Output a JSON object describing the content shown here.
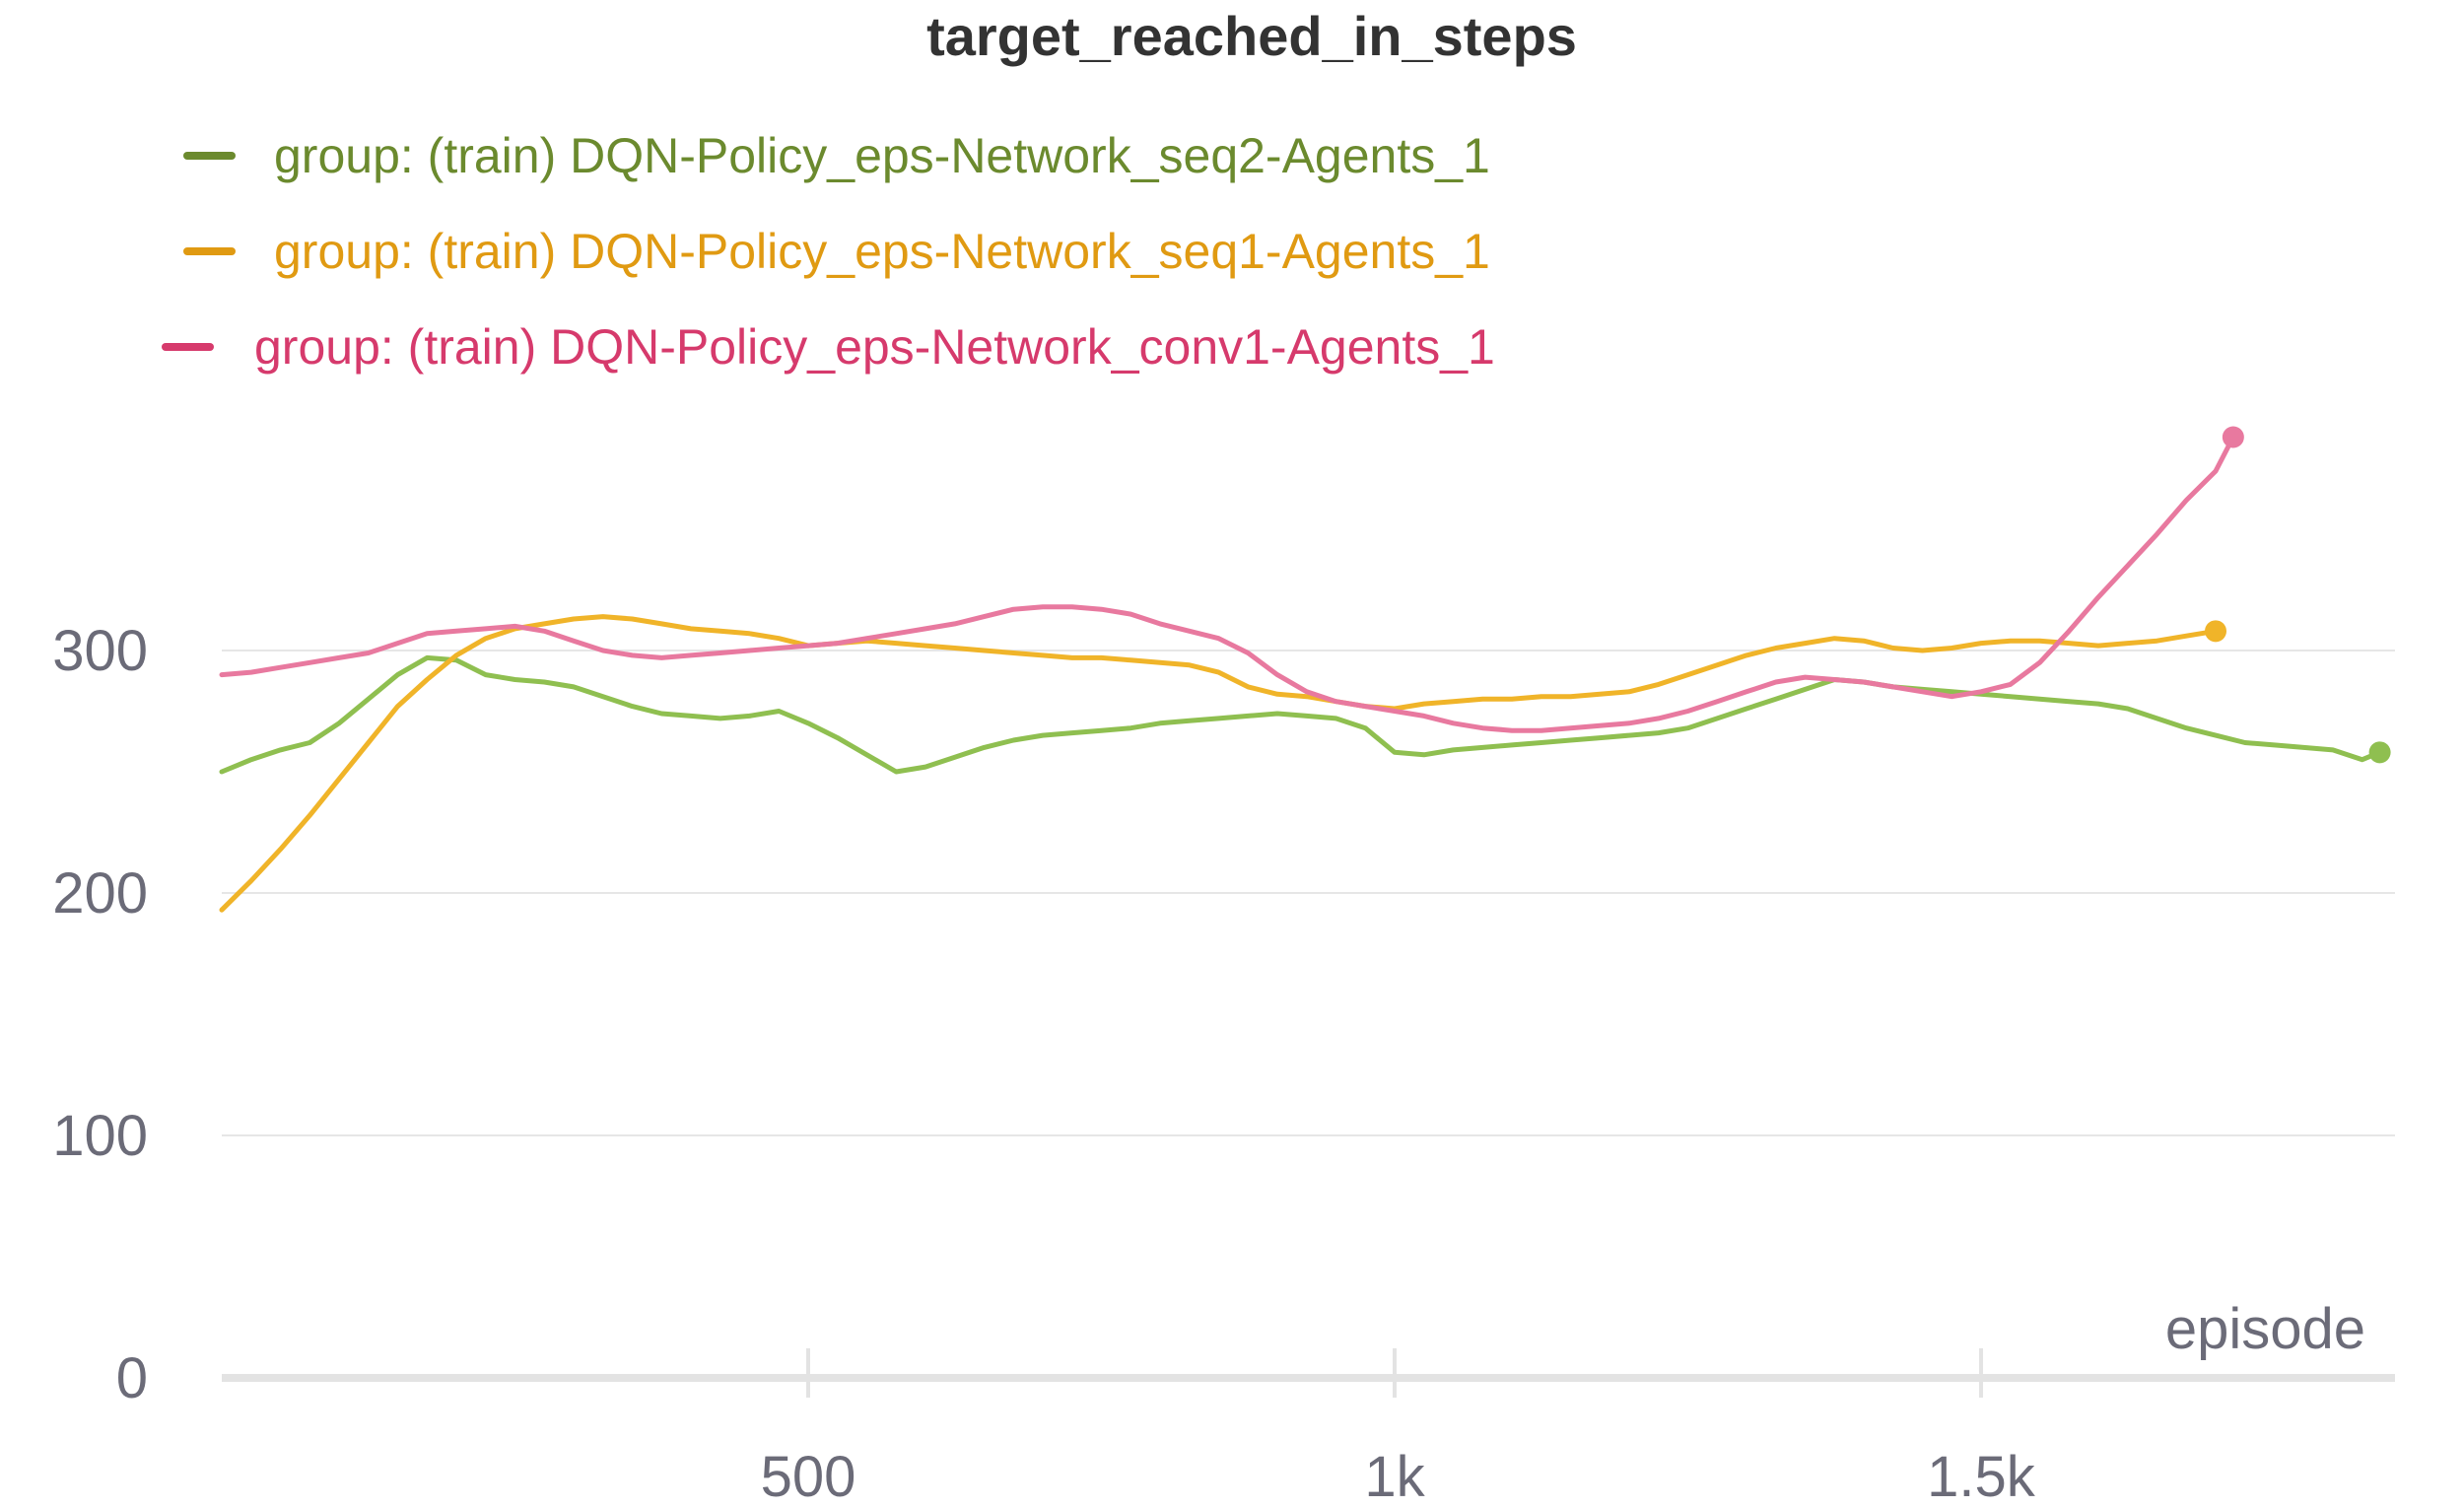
{
  "chart_data": {
    "type": "line",
    "title": "target_reached_in_steps",
    "xlabel": "episode",
    "ylabel": "",
    "xlim": [
      0,
      1840
    ],
    "ylim": [
      0,
      400
    ],
    "x_ticks": [
      {
        "value": 500,
        "label": "500"
      },
      {
        "value": 1000,
        "label": "1k"
      },
      {
        "value": 1500,
        "label": "1.5k"
      }
    ],
    "y_ticks": [
      {
        "value": 0,
        "label": "0"
      },
      {
        "value": 100,
        "label": "100"
      },
      {
        "value": 200,
        "label": "200"
      },
      {
        "value": 300,
        "label": "300"
      }
    ],
    "grid": true,
    "legend_position": "top-left",
    "series": [
      {
        "name": "group: (train) DQN-Policy_eps-Network_seq2-Agents_1",
        "color": "#8fbf50",
        "legend_color": "#6b8a2e",
        "x": [
          0,
          25,
          50,
          75,
          100,
          125,
          150,
          175,
          200,
          225,
          250,
          275,
          300,
          325,
          350,
          375,
          400,
          425,
          450,
          475,
          500,
          525,
          550,
          575,
          600,
          625,
          650,
          675,
          700,
          725,
          750,
          775,
          800,
          825,
          850,
          875,
          900,
          925,
          950,
          975,
          1000,
          1025,
          1050,
          1075,
          1100,
          1125,
          1150,
          1175,
          1200,
          1225,
          1250,
          1275,
          1300,
          1325,
          1350,
          1375,
          1400,
          1425,
          1450,
          1475,
          1500,
          1525,
          1550,
          1575,
          1600,
          1625,
          1650,
          1675,
          1700,
          1725,
          1750,
          1775,
          1800,
          1825,
          1840
        ],
        "y": [
          250,
          255,
          259,
          262,
          270,
          280,
          290,
          297,
          296,
          290,
          288,
          287,
          285,
          281,
          277,
          274,
          273,
          272,
          273,
          275,
          270,
          264,
          257,
          250,
          252,
          256,
          260,
          263,
          265,
          266,
          267,
          268,
          270,
          271,
          272,
          273,
          274,
          273,
          272,
          268,
          258,
          257,
          259,
          260,
          261,
          262,
          263,
          264,
          265,
          266,
          268,
          272,
          276,
          280,
          284,
          288,
          287,
          285,
          284,
          283,
          282,
          281,
          280,
          279,
          278,
          276,
          272,
          268,
          265,
          262,
          261,
          260,
          259,
          255,
          258
        ]
      },
      {
        "name": "group: (train) DQN-Policy_eps-Network_seq1-Agents_1",
        "color": "#f0b429",
        "legend_color": "#e09a12",
        "x": [
          0,
          25,
          50,
          75,
          100,
          125,
          150,
          175,
          200,
          225,
          250,
          275,
          300,
          325,
          350,
          375,
          400,
          425,
          450,
          475,
          500,
          525,
          550,
          575,
          600,
          625,
          650,
          675,
          700,
          725,
          750,
          775,
          800,
          825,
          850,
          875,
          900,
          925,
          950,
          975,
          1000,
          1025,
          1050,
          1075,
          1100,
          1125,
          1150,
          1175,
          1200,
          1225,
          1250,
          1275,
          1300,
          1325,
          1350,
          1375,
          1400,
          1425,
          1450,
          1475,
          1500,
          1525,
          1550,
          1575,
          1600,
          1625,
          1650,
          1675,
          1700
        ],
        "y": [
          193,
          205,
          218,
          232,
          247,
          262,
          277,
          288,
          298,
          305,
          309,
          311,
          313,
          314,
          313,
          311,
          309,
          308,
          307,
          305,
          302,
          303,
          304,
          303,
          302,
          301,
          300,
          299,
          298,
          297,
          297,
          296,
          295,
          294,
          291,
          285,
          282,
          281,
          279,
          277,
          276,
          278,
          279,
          280,
          280,
          281,
          281,
          282,
          283,
          286,
          290,
          294,
          298,
          301,
          303,
          305,
          304,
          301,
          300,
          301,
          303,
          304,
          304,
          303,
          302,
          303,
          304,
          306,
          308
        ]
      },
      {
        "name": "group: (train) DQN-Policy_eps-Network_conv1-Agents_1",
        "color": "#e8799f",
        "legend_color": "#d63a6c",
        "x": [
          0,
          25,
          50,
          75,
          100,
          125,
          150,
          175,
          200,
          225,
          250,
          275,
          300,
          325,
          350,
          375,
          400,
          425,
          450,
          475,
          500,
          525,
          550,
          575,
          600,
          625,
          650,
          675,
          700,
          725,
          750,
          775,
          800,
          825,
          850,
          875,
          900,
          925,
          950,
          975,
          1000,
          1025,
          1050,
          1075,
          1100,
          1125,
          1150,
          1175,
          1200,
          1225,
          1250,
          1275,
          1300,
          1325,
          1350,
          1375,
          1400,
          1425,
          1450,
          1475,
          1500,
          1525,
          1550,
          1575,
          1600,
          1625,
          1650,
          1675,
          1700,
          1715
        ],
        "y": [
          290,
          291,
          293,
          295,
          297,
          299,
          303,
          307,
          308,
          309,
          310,
          308,
          304,
          300,
          298,
          297,
          298,
          299,
          300,
          301,
          302,
          303,
          305,
          307,
          309,
          311,
          314,
          317,
          318,
          318,
          317,
          315,
          311,
          308,
          305,
          299,
          290,
          283,
          279,
          277,
          275,
          273,
          270,
          268,
          267,
          267,
          268,
          269,
          270,
          272,
          275,
          279,
          283,
          287,
          289,
          288,
          287,
          285,
          283,
          281,
          283,
          286,
          295,
          308,
          322,
          335,
          348,
          362,
          374,
          388
        ]
      }
    ]
  }
}
